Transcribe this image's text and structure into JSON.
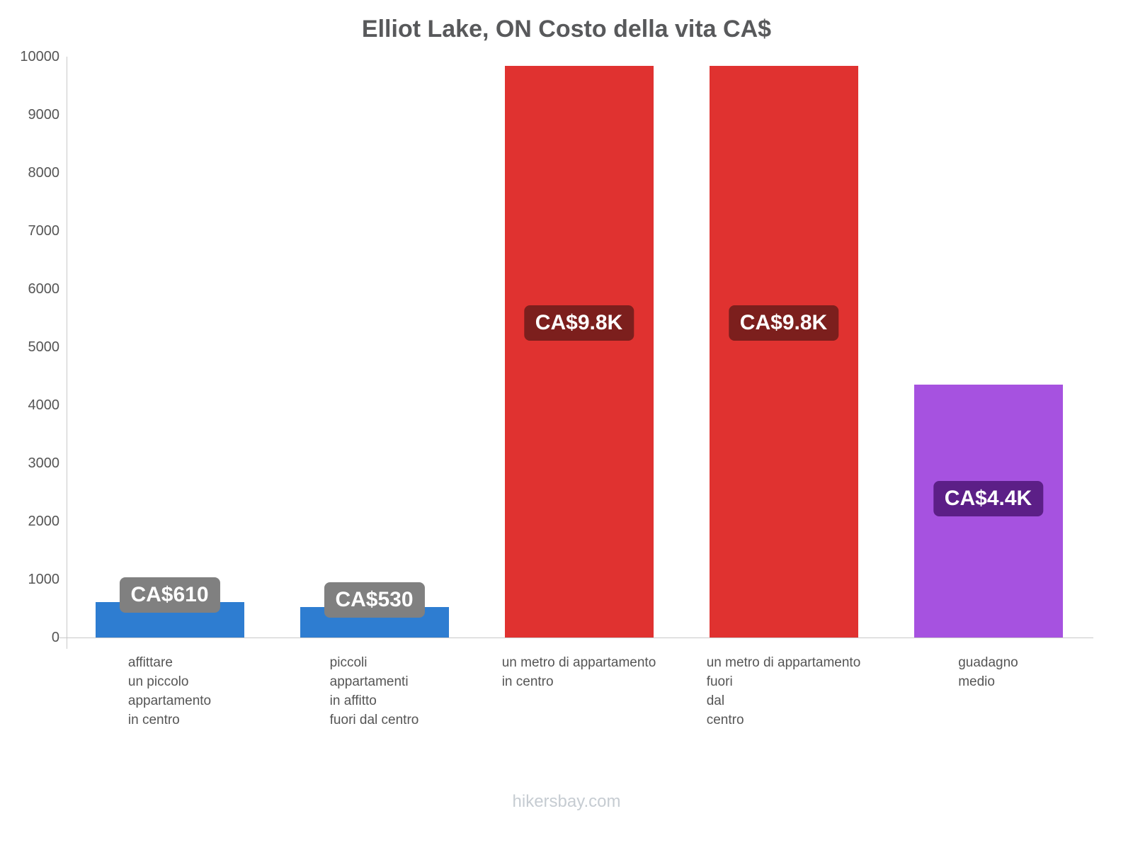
{
  "title": "Elliot Lake, ON Costo della vita CA$",
  "footer": "hikersbay.com",
  "chart_data": {
    "type": "bar",
    "title": "Elliot Lake, ON Costo della vita CA$",
    "currency": "CA$",
    "categories": [
      [
        "affittare",
        "un piccolo",
        "appartamento",
        "in centro"
      ],
      [
        "piccoli",
        "appartamenti",
        "in affitto",
        "fuori dal centro"
      ],
      [
        "un metro di appartamento",
        "in centro"
      ],
      [
        "un metro di appartamento",
        "fuori",
        "dal",
        "centro"
      ],
      [
        "guadagno",
        "medio"
      ]
    ],
    "values": [
      610,
      530,
      9840,
      9840,
      4350
    ],
    "value_labels": [
      "CA$610",
      "CA$530",
      "CA$9.8K",
      "CA$9.8K",
      "CA$4.4K"
    ],
    "bar_colors": [
      "#2e7dd1",
      "#2e7dd1",
      "#e03230",
      "#e03230",
      "#a652e0"
    ],
    "label_bg_colors": [
      "#808080",
      "#808080",
      "#7c1f1d",
      "#7c1f1d",
      "#5c1f87"
    ],
    "ylim": [
      0,
      10000
    ],
    "yticks": [
      0,
      1000,
      2000,
      3000,
      4000,
      5000,
      6000,
      7000,
      8000,
      9000,
      10000
    ],
    "xlabel": "",
    "ylabel": "",
    "grid": false,
    "legend": "none"
  }
}
